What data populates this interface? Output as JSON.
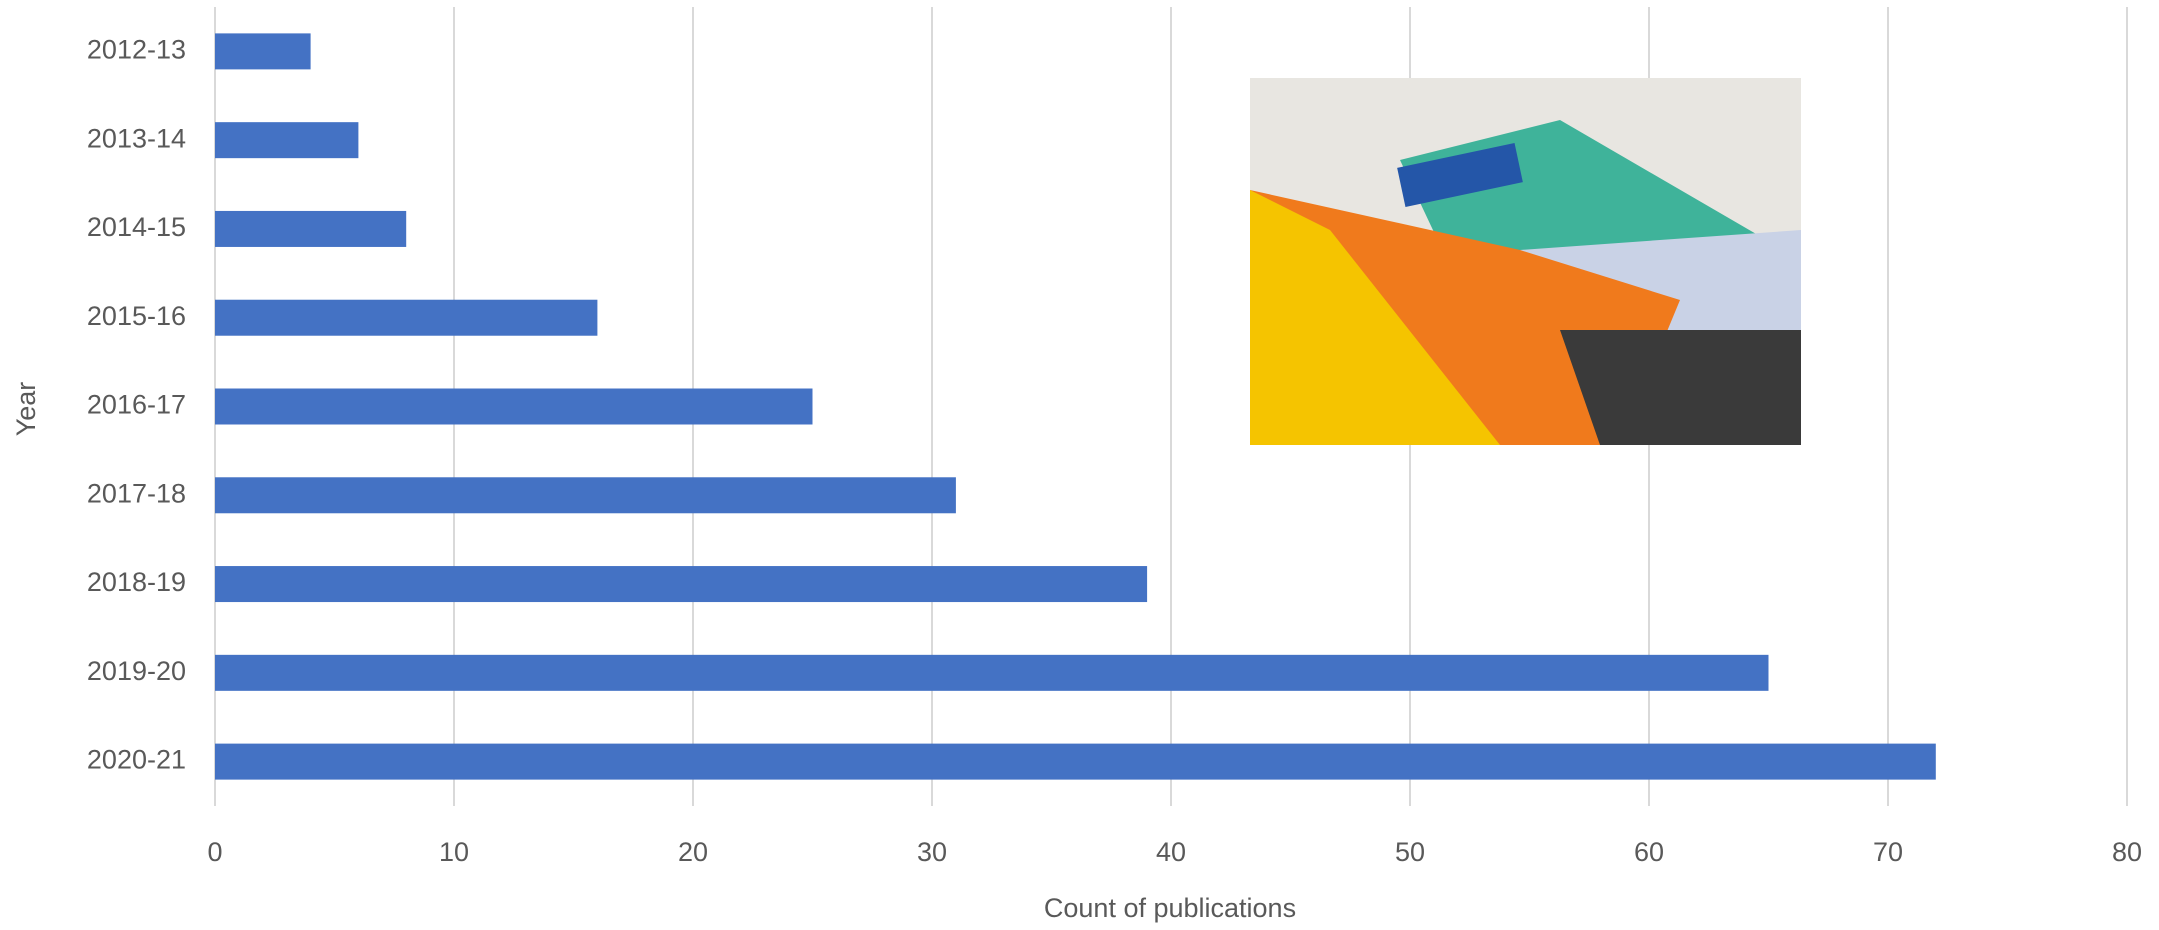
{
  "chart_data": {
    "type": "bar",
    "orientation": "horizontal",
    "x_label": "Count of publications",
    "y_label": "Year",
    "categories": [
      "2012-13",
      "2013-14",
      "2014-15",
      "2015-16",
      "2016-17",
      "2017-18",
      "2018-19",
      "2019-20",
      "2020-21"
    ],
    "values": [
      4,
      6,
      8,
      16,
      25,
      31,
      39,
      65,
      72
    ],
    "color": "#4472c4",
    "xlim": [
      0,
      80
    ],
    "xticks": [
      0,
      10,
      20,
      30,
      40,
      50,
      60,
      70,
      80
    ],
    "grid": true
  }
}
